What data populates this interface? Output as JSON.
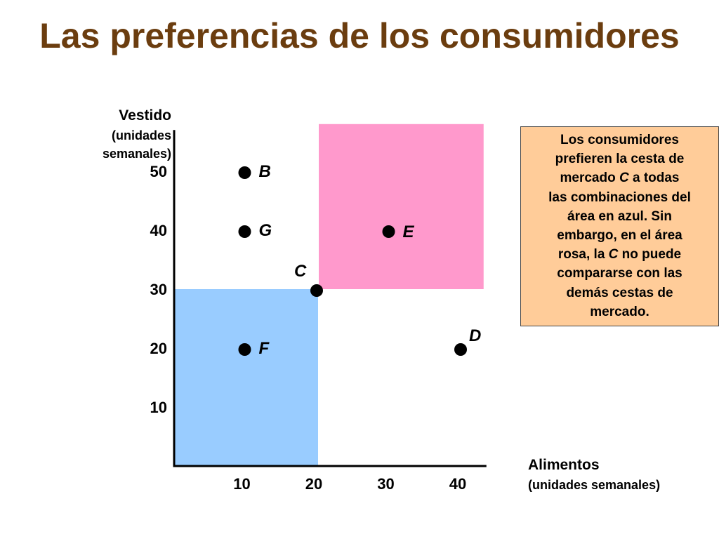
{
  "title": "Las preferencias de los consumidores",
  "chart_data": {
    "type": "scatter",
    "x_axis": {
      "label": "Alimentos",
      "sublabel": "(unidades semanales)",
      "ticks": [
        10,
        20,
        30,
        40
      ],
      "range": [
        0,
        43
      ]
    },
    "y_axis": {
      "label": "Vestido",
      "sublabel_lines": [
        "(unidades",
        "semanales)"
      ],
      "ticks": [
        10,
        20,
        30,
        40,
        50
      ],
      "range": [
        0,
        57
      ]
    },
    "points": [
      {
        "label": "B",
        "x": 10,
        "y": 50
      },
      {
        "label": "G",
        "x": 10,
        "y": 40
      },
      {
        "label": "E",
        "x": 30,
        "y": 40
      },
      {
        "label": "C",
        "x": 20,
        "y": 30
      },
      {
        "label": "F",
        "x": 10,
        "y": 20
      },
      {
        "label": "D",
        "x": 40,
        "y": 20
      }
    ],
    "regions": [
      {
        "color": "#99ccff",
        "x_range": [
          0,
          20
        ],
        "y_range": [
          0,
          30
        ]
      },
      {
        "color": "#ff99cc",
        "x_range": [
          20,
          43
        ],
        "y_range": [
          30,
          58
        ]
      }
    ]
  },
  "note": {
    "lines": [
      [
        {
          "t": "Los consumidores"
        }
      ],
      [
        {
          "t": "prefieren la cesta de"
        }
      ],
      [
        {
          "t": "mercado "
        },
        {
          "t": "C",
          "i": true
        },
        {
          "t": " a todas"
        }
      ],
      [
        {
          "t": "las combinaciones del"
        }
      ],
      [
        {
          "t": "área en azul. Sin"
        }
      ],
      [
        {
          "t": "embargo, en el área"
        }
      ],
      [
        {
          "t": "rosa, la "
        },
        {
          "t": "C",
          "i": true
        },
        {
          "t": " no puede"
        }
      ],
      [
        {
          "t": "compararse con las"
        }
      ],
      [
        {
          "t": "demás cestas de"
        }
      ],
      [
        {
          "t": "mercado."
        }
      ]
    ]
  }
}
